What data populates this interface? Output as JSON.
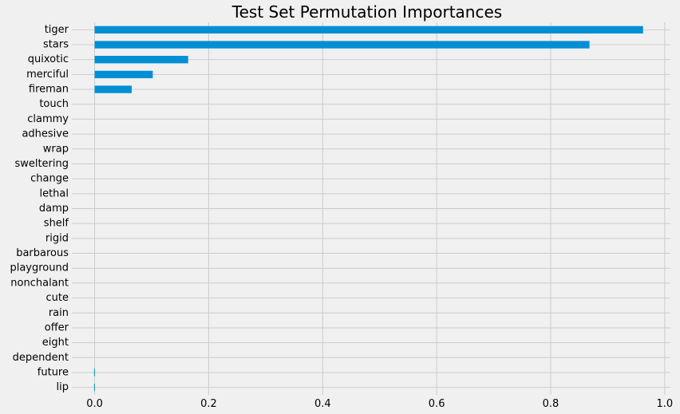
{
  "chart_data": {
    "type": "bar",
    "orientation": "horizontal",
    "title": "Test Set Permutation Importances",
    "xlabel": "",
    "ylabel": "",
    "xlim": [
      -0.04,
      1.01
    ],
    "xticks": [
      0.0,
      0.2,
      0.4,
      0.6,
      0.8,
      1.0
    ],
    "xtick_labels": [
      "0.0",
      "0.2",
      "0.4",
      "0.6",
      "0.8",
      "1.0"
    ],
    "grid": true,
    "legend": "none",
    "bar_color": "#008fd5",
    "background_color": "#f0f0f0",
    "grid_color": "#cbcbcb",
    "categories": [
      "tiger",
      "stars",
      "quixotic",
      "merciful",
      "fireman",
      "touch",
      "clammy",
      "adhesive",
      "wrap",
      "sweltering",
      "change",
      "lethal",
      "damp",
      "shelf",
      "rigid",
      "barbarous",
      "playground",
      "nonchalant",
      "cute",
      "rain",
      "offer",
      "eight",
      "dependent",
      "future",
      "lip"
    ],
    "values": [
      0.962,
      0.868,
      0.164,
      0.102,
      0.065,
      0.0,
      0.0,
      0.0,
      0.0,
      0.0,
      0.0,
      0.0,
      0.0,
      0.0,
      0.0,
      0.0,
      0.0,
      0.0,
      0.0,
      0.0,
      0.0,
      0.0,
      0.0,
      -0.001,
      -0.001
    ]
  }
}
